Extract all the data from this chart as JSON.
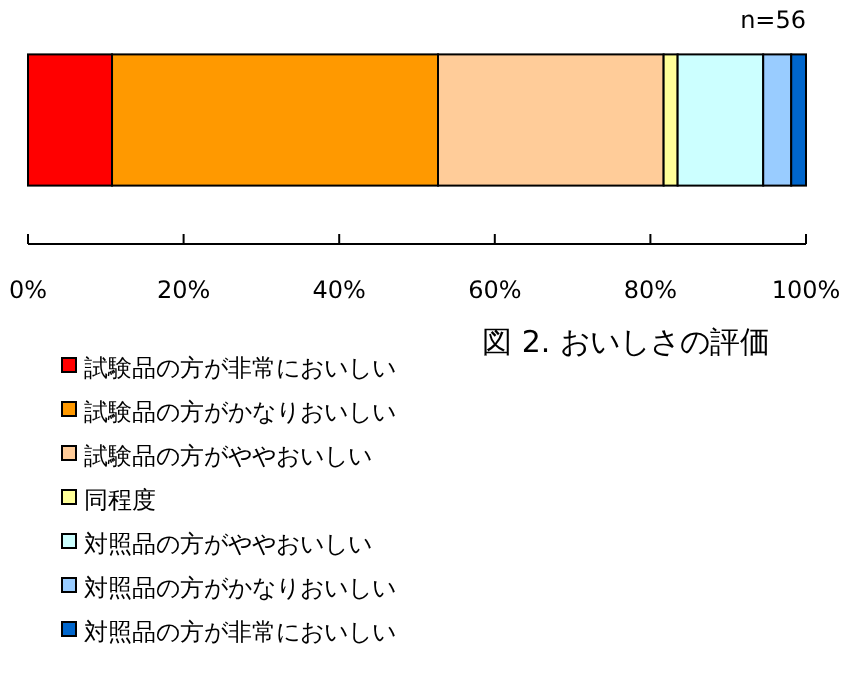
{
  "chart_data": {
    "type": "bar",
    "title": "図 2.  おいしさの評価",
    "stacked": true,
    "orientation": "horizontal",
    "categories": [
      null
    ],
    "series": [
      {
        "name": "試験品の方が非常においしい",
        "color": "#ff0000",
        "values": [
          10.8
        ]
      },
      {
        "name": "試験品の方がかなりおいしい",
        "color": "#ff9900",
        "values": [
          41.9
        ]
      },
      {
        "name": "試験品の方がややおいしい",
        "color": "#ffcc99",
        "values": [
          29
        ]
      },
      {
        "name": "同程度",
        "color": "#ffff99",
        "values": [
          1.8
        ]
      },
      {
        "name": "対照品の方がややおいしい",
        "color": "#ccffff",
        "values": [
          11
        ]
      },
      {
        "name": "対照品の方がかなりおいしい",
        "color": "#99ccff",
        "values": [
          3.6
        ]
      },
      {
        "name": "対照品の方が非常においしい",
        "color": "#0066cc",
        "values": [
          1.9
        ]
      }
    ],
    "xlim": [
      0,
      100
    ],
    "xticks": [
      {
        "value": 0,
        "label": "0%"
      },
      {
        "value": 20,
        "label": "20%"
      },
      {
        "value": 40,
        "label": "40%"
      },
      {
        "value": 60,
        "label": "60%"
      },
      {
        "value": 80,
        "label": "80%"
      },
      {
        "value": 100,
        "label": "100%"
      }
    ],
    "annotations": [
      "n=56"
    ],
    "legend": "bottom left",
    "grid": false
  }
}
